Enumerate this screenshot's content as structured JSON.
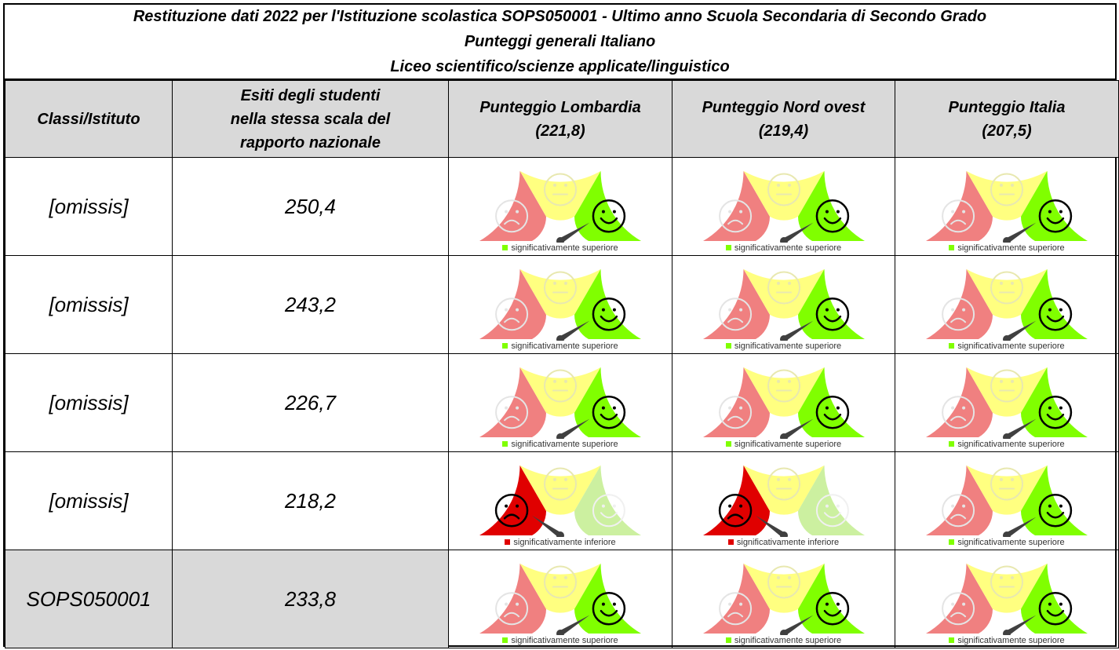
{
  "title": {
    "line1": "Restituzione dati 2022 per l'Istituzione scolastica SOPS050001 - Ultimo anno Scuola Secondaria di Secondo Grado",
    "line2": "Punteggi generali Italiano",
    "line3": "Liceo scientifico/scienze applicate/linguistico"
  },
  "headers": {
    "col1": "Classi/Istituto",
    "col2": [
      "Esiti degli studenti",
      "nella stessa scala del",
      "rapporto nazionale"
    ],
    "col3": [
      "Punteggio Lombardia",
      "(221,8)"
    ],
    "col4": [
      "Punteggio Nord ovest",
      "(219,4)"
    ],
    "col5": [
      "Punteggio Italia",
      "(207,5)"
    ]
  },
  "colors": {
    "red": "#f08080",
    "red_strong": "#e00000",
    "yellow": "#ffff80",
    "green": "#80ff00",
    "green_faded": "#ccf0a0",
    "header_bg": "#d9d9d9",
    "needle": "#404040"
  },
  "rows": [
    {
      "label": "[omissis]",
      "value": "250,4",
      "gauges": [
        {
          "result": "superiore",
          "legend": "significativamente superiore"
        },
        {
          "result": "superiore",
          "legend": "significativamente superiore"
        },
        {
          "result": "superiore",
          "legend": "significativamente superiore"
        }
      ]
    },
    {
      "label": "[omissis]",
      "value": "243,2",
      "gauges": [
        {
          "result": "superiore",
          "legend": "significativamente superiore"
        },
        {
          "result": "superiore",
          "legend": "significativamente superiore"
        },
        {
          "result": "superiore",
          "legend": "significativamente superiore"
        }
      ]
    },
    {
      "label": "[omissis]",
      "value": "226,7",
      "gauges": [
        {
          "result": "superiore",
          "legend": "significativamente superiore"
        },
        {
          "result": "superiore",
          "legend": "significativamente superiore"
        },
        {
          "result": "superiore",
          "legend": "significativamente superiore"
        }
      ]
    },
    {
      "label": "[omissis]",
      "value": "218,2",
      "gauges": [
        {
          "result": "inferiore",
          "legend": "significativamente inferiore"
        },
        {
          "result": "inferiore",
          "legend": "significativamente inferiore"
        },
        {
          "result": "superiore",
          "legend": "significativamente superiore"
        }
      ]
    },
    {
      "label": "SOPS050001",
      "value": "233,8",
      "school": true,
      "gauges": [
        {
          "result": "superiore",
          "legend": "significativamente superiore"
        },
        {
          "result": "superiore",
          "legend": "significativamente superiore"
        },
        {
          "result": "superiore",
          "legend": "significativamente superiore"
        }
      ]
    }
  ]
}
